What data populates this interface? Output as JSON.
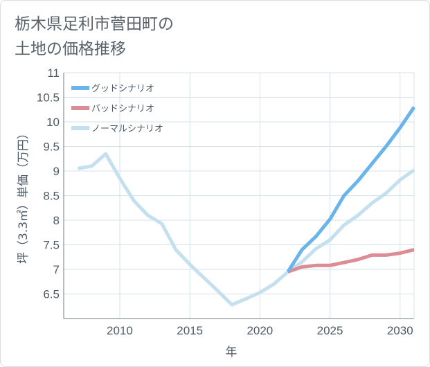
{
  "chart_data": {
    "type": "line",
    "title": "栃木県足利市菅田町の\n土地の価格推移",
    "xlabel": "年",
    "ylabel": "坪（3.3㎡）単価（万円）",
    "xlim": [
      2006,
      2031
    ],
    "ylim": [
      6,
      11
    ],
    "x_ticks": [
      "2010",
      "2015",
      "2020",
      "2025",
      "2030"
    ],
    "y_ticks": [
      "6.5",
      "7",
      "7.5",
      "8",
      "8.5",
      "9",
      "9.5",
      "10",
      "10.5",
      "11"
    ],
    "grid": true,
    "legend_position": "top-left",
    "series": [
      {
        "name": "グッドシナリオ",
        "color": "#6ab4ec",
        "points": [
          [
            2022,
            6.95
          ],
          [
            2023,
            7.4
          ],
          [
            2024,
            7.67
          ],
          [
            2025,
            8.02
          ],
          [
            2026,
            8.5
          ],
          [
            2027,
            8.8
          ],
          [
            2028,
            9.15
          ],
          [
            2029,
            9.5
          ],
          [
            2030,
            9.88
          ],
          [
            2031,
            10.3
          ]
        ]
      },
      {
        "name": "バッドシナリオ",
        "color": "#dc8c94",
        "points": [
          [
            2022,
            6.95
          ],
          [
            2023,
            7.05
          ],
          [
            2024,
            7.08
          ],
          [
            2025,
            7.08
          ],
          [
            2026,
            7.14
          ],
          [
            2027,
            7.2
          ],
          [
            2028,
            7.29
          ],
          [
            2029,
            7.29
          ],
          [
            2030,
            7.33
          ],
          [
            2031,
            7.4
          ]
        ]
      },
      {
        "name": "ノーマルシナリオ",
        "color": "#c4e0ee",
        "points": [
          [
            2007,
            9.05
          ],
          [
            2008,
            9.1
          ],
          [
            2009,
            9.35
          ],
          [
            2010,
            8.85
          ],
          [
            2011,
            8.4
          ],
          [
            2012,
            8.1
          ],
          [
            2013,
            7.93
          ],
          [
            2014,
            7.4
          ],
          [
            2015,
            7.1
          ],
          [
            2016,
            6.83
          ],
          [
            2017,
            6.56
          ],
          [
            2018,
            6.28
          ],
          [
            2019,
            6.4
          ],
          [
            2020,
            6.53
          ],
          [
            2021,
            6.7
          ],
          [
            2022,
            6.95
          ],
          [
            2023,
            7.15
          ],
          [
            2024,
            7.42
          ],
          [
            2025,
            7.6
          ],
          [
            2026,
            7.9
          ],
          [
            2027,
            8.1
          ],
          [
            2028,
            8.35
          ],
          [
            2029,
            8.55
          ],
          [
            2030,
            8.82
          ],
          [
            2031,
            9.02
          ]
        ]
      }
    ]
  }
}
